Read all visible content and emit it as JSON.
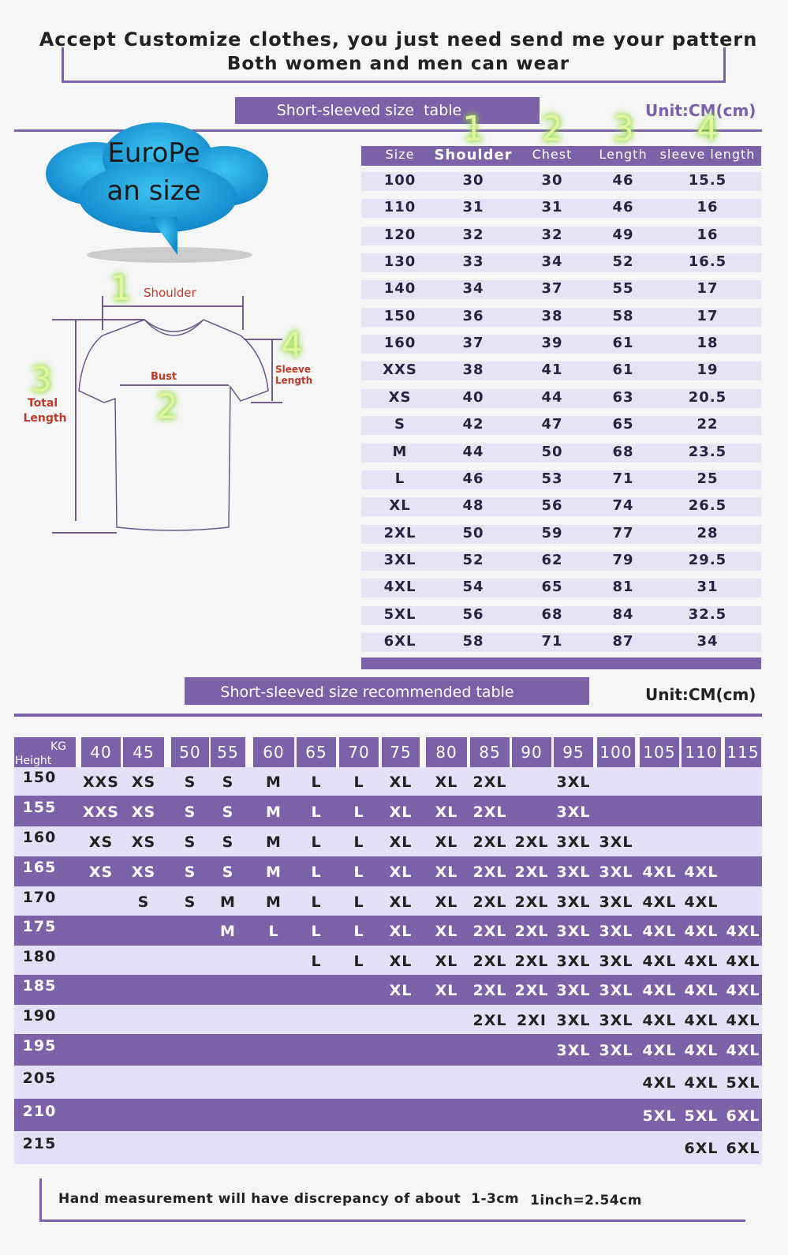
{
  "header": {
    "line1": "Accept Customize clothes, you just need send me your pattern",
    "line2": "Both women and men can wear"
  },
  "size_table": {
    "title": "Short-sleeved size  table",
    "unit": "Unit:CM(cm)",
    "numbers": [
      "1",
      "2",
      "3",
      "4"
    ],
    "columns": [
      "Size",
      "Shoulder",
      "Chest",
      "Length",
      "sleeve length"
    ],
    "rows": [
      [
        "100",
        30,
        30,
        46,
        15.5
      ],
      [
        "110",
        31,
        31,
        46,
        16
      ],
      [
        "120",
        32,
        32,
        49,
        16
      ],
      [
        "130",
        33,
        34,
        52,
        16.5
      ],
      [
        "140",
        34,
        37,
        55,
        17
      ],
      [
        "150",
        36,
        38,
        58,
        17
      ],
      [
        "160",
        37,
        39,
        61,
        18
      ],
      [
        "XXS",
        38,
        41,
        61,
        19
      ],
      [
        "XS",
        40,
        44,
        63,
        20.5
      ],
      [
        "S",
        42,
        47,
        65,
        22
      ],
      [
        "M",
        44,
        50,
        68,
        23.5
      ],
      [
        "L",
        46,
        53,
        71,
        25
      ],
      [
        "XL",
        48,
        56,
        74,
        26.5
      ],
      [
        "2XL",
        50,
        59,
        77,
        28
      ],
      [
        "3XL",
        52,
        62,
        79,
        29.5
      ],
      [
        "4XL",
        54,
        65,
        81,
        31
      ],
      [
        "5XL",
        56,
        68,
        84,
        32.5
      ],
      [
        "6XL",
        58,
        71,
        87,
        34
      ]
    ]
  },
  "cloud": {
    "line1": "EuroPe",
    "line2": "an size"
  },
  "diagram": {
    "shoulder_num": "1",
    "shoulder": "Shoulder",
    "bust_num": "2",
    "bust": "Bust",
    "length_num": "3",
    "length_1": "Total",
    "length_2": "Length",
    "sleeve_num": "4",
    "sleeve_1": "Sleeve",
    "sleeve_2": "Length"
  },
  "rec_table": {
    "title": "Short-sleeved size recommended table",
    "unit": "Unit:CM(cm)",
    "corner_kg": "KG",
    "corner_height": "Height",
    "kg": [
      40,
      45,
      50,
      55,
      60,
      65,
      70,
      75,
      80,
      85,
      90,
      95,
      100,
      105,
      110,
      115
    ],
    "rows": [
      {
        "height": 150,
        "cells": [
          "XXS",
          "XS",
          "S",
          "S",
          "M",
          "L",
          "L",
          "XL",
          "XL",
          "2XL",
          null,
          "3XL",
          null,
          null,
          null,
          null
        ]
      },
      {
        "height": 155,
        "cells": [
          "XXS",
          "XS",
          "S",
          "S",
          "M",
          "L",
          "L",
          "XL",
          "XL",
          "2XL",
          null,
          "3XL",
          null,
          null,
          null,
          null
        ]
      },
      {
        "height": 160,
        "cells": [
          "XS",
          "XS",
          "S",
          "S",
          "M",
          "L",
          "L",
          "XL",
          "XL",
          "2XL",
          "2XL",
          "3XL",
          "3XL",
          null,
          null,
          null
        ]
      },
      {
        "height": 165,
        "cells": [
          "XS",
          "XS",
          "S",
          "S",
          "M",
          "L",
          "L",
          "XL",
          "XL",
          "2XL",
          "2XL",
          "3XL",
          "3XL",
          "4XL",
          "4XL",
          null
        ]
      },
      {
        "height": 170,
        "cells": [
          null,
          "S",
          "S",
          "M",
          "M",
          "L",
          "L",
          "XL",
          "XL",
          "2XL",
          "2XL",
          "3XL",
          "3XL",
          "4XL",
          "4XL",
          null
        ]
      },
      {
        "height": 175,
        "cells": [
          null,
          null,
          null,
          "M",
          "L",
          "L",
          "L",
          "XL",
          "XL",
          "2XL",
          "2XL",
          "3XL",
          "3XL",
          "4XL",
          "4XL",
          "4XL"
        ]
      },
      {
        "height": 180,
        "cells": [
          null,
          null,
          null,
          null,
          null,
          "L",
          "L",
          "XL",
          "XL",
          "2XL",
          "2XL",
          "3XL",
          "3XL",
          "4XL",
          "4XL",
          "4XL"
        ]
      },
      {
        "height": 185,
        "cells": [
          null,
          null,
          null,
          null,
          null,
          null,
          null,
          "XL",
          "XL",
          "2XL",
          "2XL",
          "3XL",
          "3XL",
          "4XL",
          "4XL",
          "4XL"
        ]
      },
      {
        "height": 190,
        "cells": [
          null,
          null,
          null,
          null,
          null,
          null,
          null,
          null,
          null,
          "2XL",
          "2XI",
          "3XL",
          "3XL",
          "4XL",
          "4XL",
          "4XL"
        ]
      },
      {
        "height": 195,
        "cells": [
          null,
          null,
          null,
          null,
          null,
          null,
          null,
          null,
          null,
          null,
          null,
          "3XL",
          "3XL",
          "4XL",
          "4XL",
          "4XL"
        ]
      },
      {
        "height": 205,
        "cells": [
          null,
          null,
          null,
          null,
          null,
          null,
          null,
          null,
          null,
          null,
          null,
          null,
          null,
          "4XL",
          "4XL",
          "5XL"
        ]
      },
      {
        "height": 210,
        "cells": [
          null,
          null,
          null,
          null,
          null,
          null,
          null,
          null,
          null,
          null,
          null,
          null,
          null,
          "5XL",
          "5XL",
          "6XL"
        ]
      },
      {
        "height": 215,
        "cells": [
          null,
          null,
          null,
          null,
          null,
          null,
          null,
          null,
          null,
          null,
          null,
          null,
          null,
          null,
          "6XL",
          "6XL"
        ]
      }
    ]
  },
  "footer": {
    "note": "Hand measurement will have discrepancy of about  1-3cm",
    "inch": "1inch=2.54cm"
  }
}
